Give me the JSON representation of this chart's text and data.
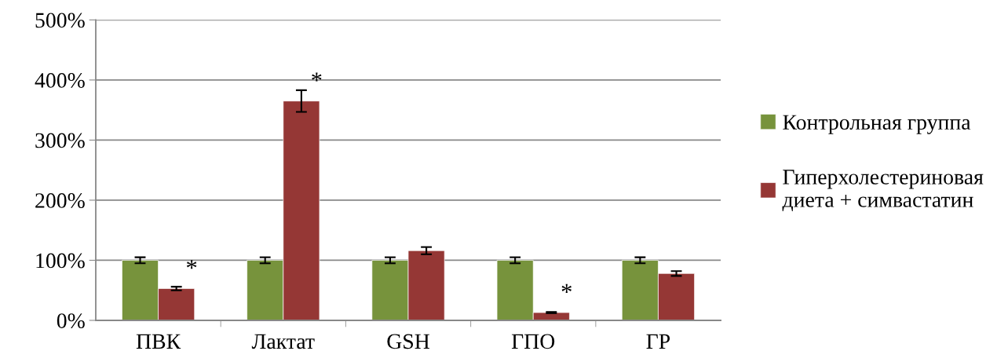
{
  "chart_data": {
    "type": "bar",
    "categories": [
      "ПВК",
      "Лактат",
      "GSH",
      "ГПО",
      "ГР"
    ],
    "series": [
      {
        "name": "Контрольная группа",
        "color": "#77933c",
        "values": [
          100,
          100,
          100,
          100,
          100
        ],
        "errors": [
          5,
          5,
          5,
          5,
          5
        ]
      },
      {
        "name": "Гиперхолестериновая\nдиета + симвастатин",
        "color": "#953735",
        "values": [
          53,
          365,
          116,
          13,
          78
        ],
        "errors": [
          3,
          18,
          6,
          1,
          4
        ]
      }
    ],
    "ylim": [
      0,
      500
    ],
    "yticks": [
      {
        "value": 0,
        "label": "0%"
      },
      {
        "value": 100,
        "label": "100%"
      },
      {
        "value": 200,
        "label": "200%"
      },
      {
        "value": 300,
        "label": "300%"
      },
      {
        "value": 400,
        "label": "400%"
      },
      {
        "value": 500,
        "label": "500%"
      }
    ],
    "grid": "y",
    "legend": "right",
    "annotations": [
      {
        "text": "*",
        "x": "ПВК",
        "y": 53
      },
      {
        "text": "*",
        "x": "Лактат",
        "y": 365
      },
      {
        "text": "*",
        "x": "ГПО",
        "y": 13
      }
    ]
  }
}
